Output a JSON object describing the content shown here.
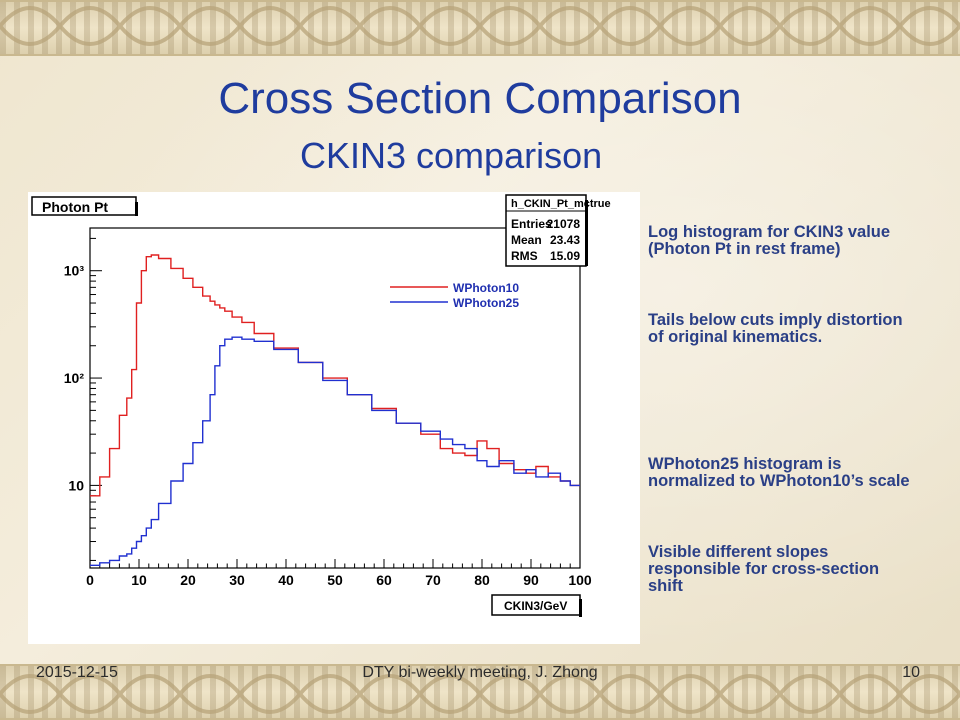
{
  "slide": {
    "title": "Cross Section Comparison",
    "subtitle": "CKIN3 comparison",
    "footer_date": "2015-12-15",
    "footer_center": "DTY bi-weekly meeting, J. Zhong",
    "page_number": "10"
  },
  "notes": [
    "Log histogram for CKIN3 value (Photon Pt in rest frame)",
    "Tails below cuts imply distortion of original kinematics.",
    "WPhoton25 histogram is normalized to WPhoton10’s scale",
    "Visible different slopes responsible for cross-section shift"
  ],
  "chart_data": {
    "type": "line",
    "title": "Photon Pt",
    "xlabel": "CKIN3/GeV",
    "ylabel": "",
    "xlim": [
      0,
      100
    ],
    "ylim": [
      1.7,
      2500
    ],
    "yscale": "log",
    "x_ticks": [
      0,
      10,
      20,
      30,
      40,
      50,
      60,
      70,
      80,
      90,
      100
    ],
    "y_ticks": [
      10,
      100,
      1000
    ],
    "y_tick_labels": [
      "10",
      "10²",
      "10³"
    ],
    "grid": false,
    "legend_position": "upper-right",
    "stats_box": {
      "name": "h_CKIN_Pt_mctrue",
      "rows": [
        {
          "label": "Entries",
          "value": "21078"
        },
        {
          "label": "Mean",
          "value": "23.43"
        },
        {
          "label": "RMS",
          "value": "15.09"
        }
      ]
    },
    "x": [
      1,
      3,
      5,
      7,
      8,
      9,
      10,
      11,
      12,
      13,
      15,
      18,
      20,
      22,
      24,
      25,
      26,
      27,
      28,
      30,
      32,
      35,
      40,
      45,
      50,
      55,
      60,
      65,
      70,
      73,
      75,
      78,
      80,
      82,
      85,
      88,
      90,
      92,
      95,
      97,
      99
    ],
    "series": [
      {
        "name": "WPhoton10",
        "color": "#e02020",
        "values": [
          8,
          12,
          22,
          45,
          65,
          120,
          500,
          1000,
          1350,
          1400,
          1300,
          1050,
          850,
          700,
          580,
          520,
          480,
          450,
          420,
          370,
          330,
          260,
          190,
          140,
          100,
          70,
          52,
          38,
          30,
          22,
          20,
          19,
          26,
          22,
          16,
          14,
          13,
          15,
          12,
          11,
          10
        ]
      },
      {
        "name": "WPhoton25",
        "color": "#2030d0",
        "values": [
          1.8,
          1.9,
          2.0,
          2.2,
          2.3,
          2.6,
          3.0,
          3.4,
          4.0,
          4.8,
          6.8,
          11,
          16,
          25,
          40,
          70,
          130,
          200,
          230,
          240,
          230,
          220,
          185,
          140,
          95,
          70,
          50,
          38,
          32,
          27,
          24,
          22,
          17,
          15,
          17,
          13,
          14,
          12,
          13,
          11,
          10
        ]
      }
    ]
  }
}
